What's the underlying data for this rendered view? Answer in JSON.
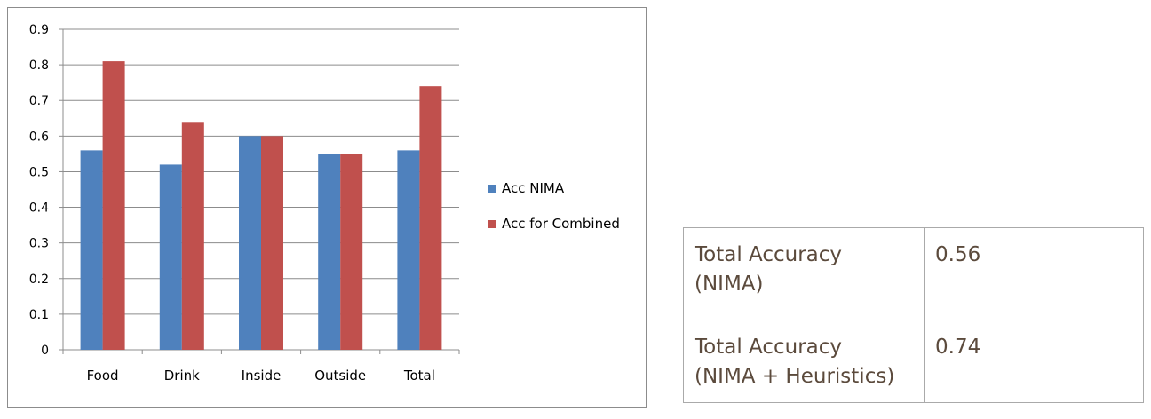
{
  "chart_data": {
    "type": "bar",
    "categories": [
      "Food",
      "Drink",
      "Inside",
      "Outside",
      "Total"
    ],
    "series": [
      {
        "name": "Acc NIMA",
        "color": "#4f81bd",
        "values": [
          0.56,
          0.52,
          0.6,
          0.55,
          0.56
        ]
      },
      {
        "name": "Acc for Combined",
        "color": "#c0504d",
        "values": [
          0.81,
          0.64,
          0.6,
          0.55,
          0.74
        ]
      }
    ],
    "yticks": [
      "0",
      "0.1",
      "0.2",
      "0.3",
      "0.4",
      "0.5",
      "0.6",
      "0.7",
      "0.8",
      "0.9"
    ],
    "ylim": [
      0,
      0.9
    ],
    "grid": true,
    "legend": "right"
  },
  "table": {
    "rows": [
      {
        "label_line1": "Total Accuracy",
        "label_line2": "(NIMA)",
        "value": "0.56"
      },
      {
        "label_line1": "Total Accuracy",
        "label_line2": "(NIMA + Heuristics)",
        "value": "0.74"
      }
    ]
  }
}
